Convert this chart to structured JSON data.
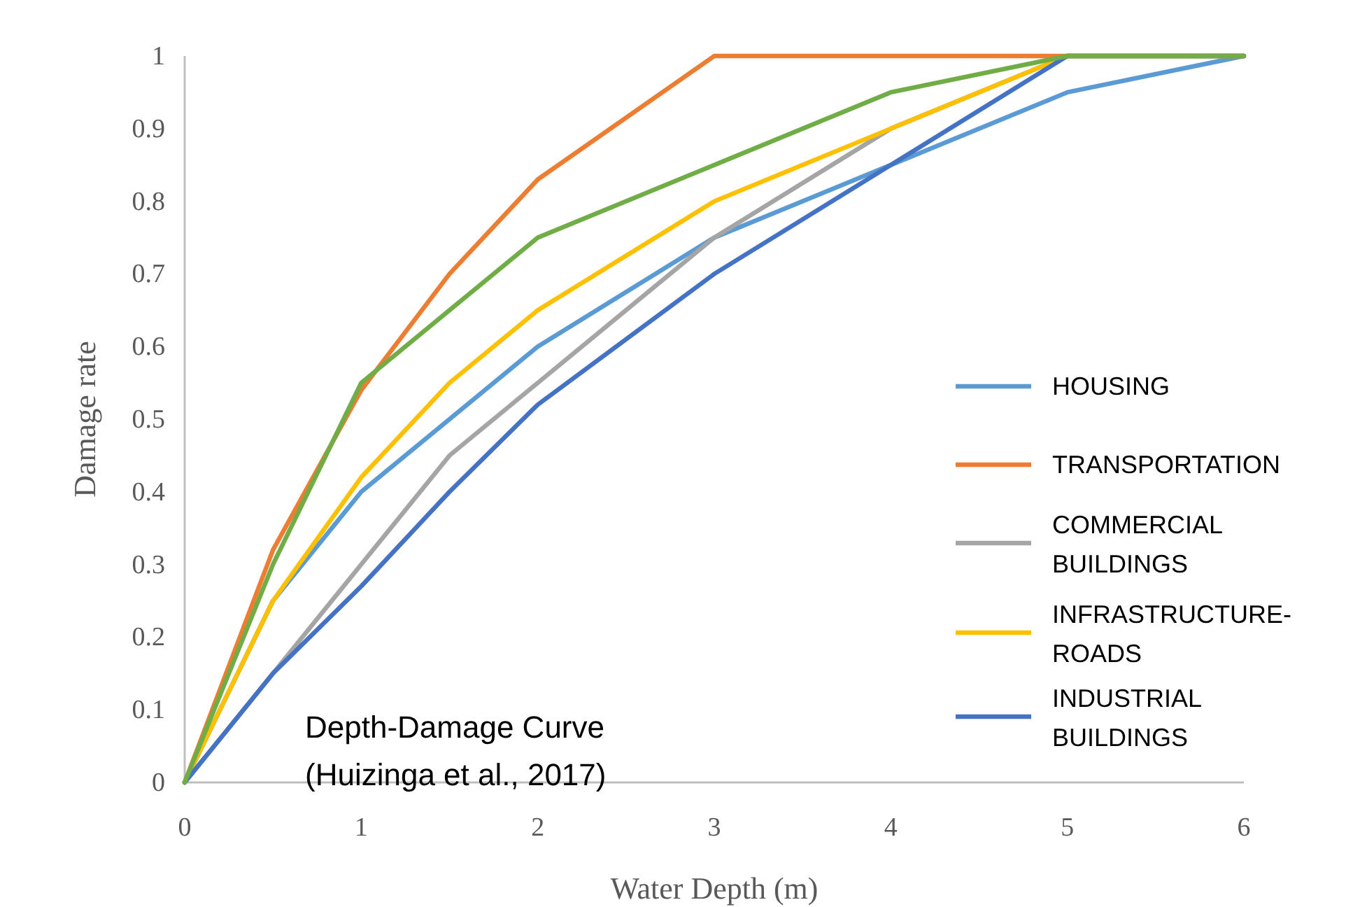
{
  "chart_data": {
    "type": "line",
    "xlabel": "Water Depth (m)",
    "ylabel": "Damage rate",
    "x": [
      0,
      0.5,
      1,
      1.5,
      2,
      3,
      4,
      5,
      6
    ],
    "series": [
      {
        "name": "HOUSING",
        "color": "#5b9bd5",
        "values": [
          0,
          0.25,
          0.4,
          0.5,
          0.6,
          0.75,
          0.85,
          0.95,
          1
        ]
      },
      {
        "name": "TRANSPORTATION",
        "color": "#ed7d31",
        "values": [
          0,
          0.32,
          0.54,
          0.7,
          0.83,
          1,
          1,
          1,
          1
        ]
      },
      {
        "name": "COMMERCIAL BUILDINGS",
        "color": "#a5a5a5",
        "values": [
          0,
          0.15,
          0.3,
          0.45,
          0.55,
          0.75,
          0.9,
          1,
          1
        ]
      },
      {
        "name": "INFRASTRUCTURE-ROADS",
        "color": "#ffc000",
        "values": [
          0,
          0.25,
          0.42,
          0.55,
          0.65,
          0.8,
          0.9,
          1,
          1
        ]
      },
      {
        "name": "INDUSTRIAL BUILDINGS",
        "color": "#4472c4",
        "values": [
          0,
          0.15,
          0.27,
          0.4,
          0.52,
          0.7,
          0.85,
          1,
          1
        ]
      },
      {
        "color": "#70ad47",
        "values": [
          0,
          0.3,
          0.55,
          0.65,
          0.75,
          0.85,
          0.95,
          1,
          1
        ]
      }
    ],
    "xlim": [
      0,
      6
    ],
    "xticks": [
      0,
      1,
      2,
      3,
      4,
      5,
      6
    ],
    "ylim": [
      0,
      1
    ],
    "yticks": [
      0,
      0.1,
      0.2,
      0.3,
      0.4,
      0.5,
      0.6,
      0.7,
      0.8,
      0.9,
      1
    ],
    "grid": false,
    "legend": "right",
    "marker": "none",
    "line_style": "solid",
    "annotations": [
      "Depth-Damage Curve\n(Huizinga et al., 2017)"
    ]
  }
}
